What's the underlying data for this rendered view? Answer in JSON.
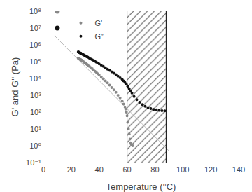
{
  "chart_data": {
    "type": "scatter",
    "title": "",
    "xlabel": "Temperature (°C)",
    "ylabel": "G' and G'' (Pa)",
    "log": "y",
    "grid": false,
    "legend": "upper left",
    "xlim": [
      0,
      140
    ],
    "xticks": [
      0,
      20,
      40,
      60,
      80,
      100,
      120,
      140
    ],
    "ylim": [
      0.1,
      100000000
    ],
    "yticks": [
      {
        "value": 0.1,
        "label": "10⁻¹"
      },
      {
        "value": 1,
        "label": "10⁰"
      },
      {
        "value": 10,
        "label": "10¹"
      },
      {
        "value": 100,
        "label": "10²"
      },
      {
        "value": 1000,
        "label": "10³"
      },
      {
        "value": 10000,
        "label": "10⁴"
      },
      {
        "value": 100000,
        "label": "10⁵"
      },
      {
        "value": 1000000,
        "label": "10⁶"
      },
      {
        "value": 10000000,
        "label": "10⁷"
      },
      {
        "value": 100000000,
        "label": "10⁸"
      }
    ],
    "vlines": [
      60,
      88
    ],
    "hatch_region": [
      60,
      88
    ],
    "series": [
      {
        "name": "G'",
        "color": "#888888",
        "marker": "circle",
        "x": [
          25.0,
          25.3,
          25.6,
          25.9,
          26.2,
          26.5,
          26.8,
          27.1,
          27.4,
          27.7,
          28.0,
          28.5,
          29.0,
          29.5,
          30.0,
          30.5,
          31.0,
          31.5,
          32.0,
          33.0,
          34.0,
          35.0,
          36.0,
          37.0,
          38.0,
          39.0,
          40.0,
          41.5,
          43.0,
          44.5,
          46.0,
          47.5,
          49.0,
          50.5,
          52.0,
          53.5,
          55.0,
          56.5,
          57.5,
          58.5,
          59.0,
          59.5,
          60.0,
          60.5,
          61.0,
          61.5,
          62.0,
          62.5,
          63.0,
          63.5,
          64.0
        ],
        "values": [
          160000.0,
          155000.0,
          150000.0,
          145000.0,
          140000.0,
          135000.0,
          130000.0,
          125000.0,
          120000.0,
          115000.0,
          110000.0,
          102000.0,
          95000.0,
          88000.0,
          82000.0,
          77000.0,
          71000.0,
          66000.0,
          61000.0,
          52000.0,
          44000.0,
          38000.0,
          32000.0,
          27000.0,
          23000.0,
          19000.0,
          16000.0,
          12500.0,
          9500.0,
          7200.0,
          5500.0,
          4000.0,
          2900.0,
          2100.0,
          1500.0,
          1000.0,
          700.0,
          450.0,
          300.0,
          200.0,
          150.0,
          100.0,
          60.0,
          25.0,
          10.0,
          5.0,
          2.5,
          1.5,
          1.2,
          1.1,
          1.0
        ]
      },
      {
        "name": "G″",
        "color": "#111111",
        "marker": "circle",
        "x": [
          25.0,
          25.3,
          25.6,
          25.9,
          26.2,
          26.5,
          26.8,
          27.1,
          27.4,
          27.7,
          28.0,
          28.5,
          29.0,
          29.5,
          30.0,
          30.5,
          31.0,
          31.5,
          32.0,
          33.0,
          34.0,
          35.0,
          36.0,
          37.0,
          38.0,
          39.0,
          40.0,
          41.5,
          43.0,
          44.5,
          46.0,
          47.5,
          49.0,
          50.5,
          52.0,
          53.5,
          55.0,
          56.5,
          57.5,
          58.5,
          59.5,
          60.5,
          61.5,
          62.5,
          63.5,
          65.0,
          67.0,
          69.0,
          71.0,
          73.0,
          75.0,
          77.0,
          79.0,
          81.0,
          83.0,
          85.0,
          87.0
        ],
        "values": [
          380000.0,
          368000.0,
          356000.0,
          345000.0,
          334000.0,
          323000.0,
          313000.0,
          303000.0,
          293000.0,
          284000.0,
          275000.0,
          262000.0,
          248000.0,
          235000.0,
          223000.0,
          211000.0,
          200000.0,
          190000.0,
          180000.0,
          162000.0,
          145000.0,
          130000.0,
          117000.0,
          105000.0,
          93000.0,
          83000.0,
          74000.0,
          62000.0,
          52000.0,
          43000.0,
          36000.0,
          30000.0,
          25000.0,
          20500.0,
          17000.0,
          13800.0,
          11000.0,
          8800.0,
          7200.0,
          5800.0,
          4500.0,
          3400.0,
          2500.0,
          1850.0,
          1350.0,
          850.0,
          550.0,
          380.0,
          280.0,
          220.0,
          185.0,
          160.0,
          145.0,
          135.0,
          128.0,
          122.0,
          118.0
        ]
      },
      {
        "type": "line",
        "color": "#bbbbbb",
        "x": [
          8,
          90
        ],
        "values": [
          3500000.0,
          0.5
        ]
      },
      {
        "color": "#888888",
        "marker": "circle",
        "x": [
          10
        ],
        "values": [
          100000000.0
        ]
      },
      {
        "color": "#111111",
        "marker": "circle",
        "x": [
          10
        ],
        "values": [
          10000000.0
        ]
      }
    ]
  }
}
